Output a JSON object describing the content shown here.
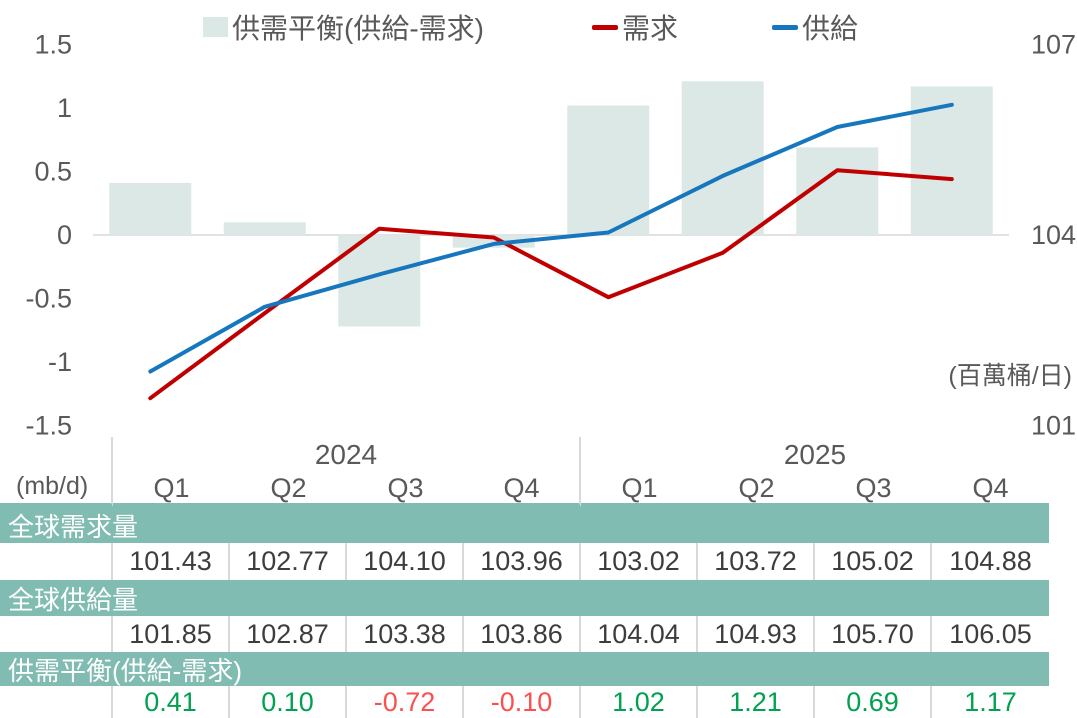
{
  "legend": {
    "balance_label": "供需平衡(供給-需求)",
    "demand_label": "需求",
    "supply_label": "供給"
  },
  "unit_note": "(百萬桶/日)",
  "colors": {
    "bar": "#dbe8e6",
    "demand_line": "#c00000",
    "supply_line": "#1777be",
    "band": "#80bcb2",
    "positive": "#00a14f",
    "negative": "#fc4f4f",
    "axis_text": "#595959",
    "gridline": "#d9d9d9"
  },
  "chart_data": {
    "type": "combo",
    "categories": [
      "2024 Q1",
      "2024 Q2",
      "2024 Q3",
      "2024 Q4",
      "2025 Q1",
      "2025 Q2",
      "2025 Q3",
      "2025 Q4"
    ],
    "series": [
      {
        "name": "供需平衡(供給-需求)",
        "type": "bar",
        "axis": "left",
        "values": [
          0.41,
          0.1,
          -0.72,
          -0.1,
          1.02,
          1.21,
          0.69,
          1.17
        ]
      },
      {
        "name": "需求",
        "type": "line",
        "axis": "right",
        "values": [
          101.43,
          102.77,
          104.1,
          103.96,
          103.02,
          103.72,
          105.02,
          104.88
        ]
      },
      {
        "name": "供給",
        "type": "line",
        "axis": "right",
        "values": [
          101.85,
          102.87,
          103.38,
          103.86,
          104.04,
          104.93,
          105.7,
          106.05
        ]
      }
    ],
    "left_axis": {
      "ticks": [
        1.5,
        1,
        0.5,
        0,
        -0.5,
        -1,
        -1.5
      ],
      "range": [
        -1.5,
        1.5
      ]
    },
    "right_axis": {
      "ticks": [
        107,
        104,
        101
      ],
      "range": [
        101,
        107
      ]
    },
    "grid": "zero-line-only",
    "legend_position": "top",
    "title": ""
  },
  "table": {
    "unit_label": "(mb/d)",
    "years": [
      "2024",
      "2025"
    ],
    "quarters": [
      "Q1",
      "Q2",
      "Q3",
      "Q4",
      "Q1",
      "Q2",
      "Q3",
      "Q4"
    ],
    "rows": [
      {
        "label": "全球需求量",
        "values": [
          "101.43",
          "102.77",
          "104.10",
          "103.96",
          "103.02",
          "103.72",
          "105.02",
          "104.88"
        ]
      },
      {
        "label": "全球供給量",
        "values": [
          "101.85",
          "102.87",
          "103.38",
          "103.86",
          "104.04",
          "104.93",
          "105.70",
          "106.05"
        ]
      },
      {
        "label": "供需平衡(供給-需求)",
        "values": [
          "0.41",
          "0.10",
          "-0.72",
          "-0.10",
          "1.02",
          "1.21",
          "0.69",
          "1.17"
        ]
      }
    ]
  }
}
